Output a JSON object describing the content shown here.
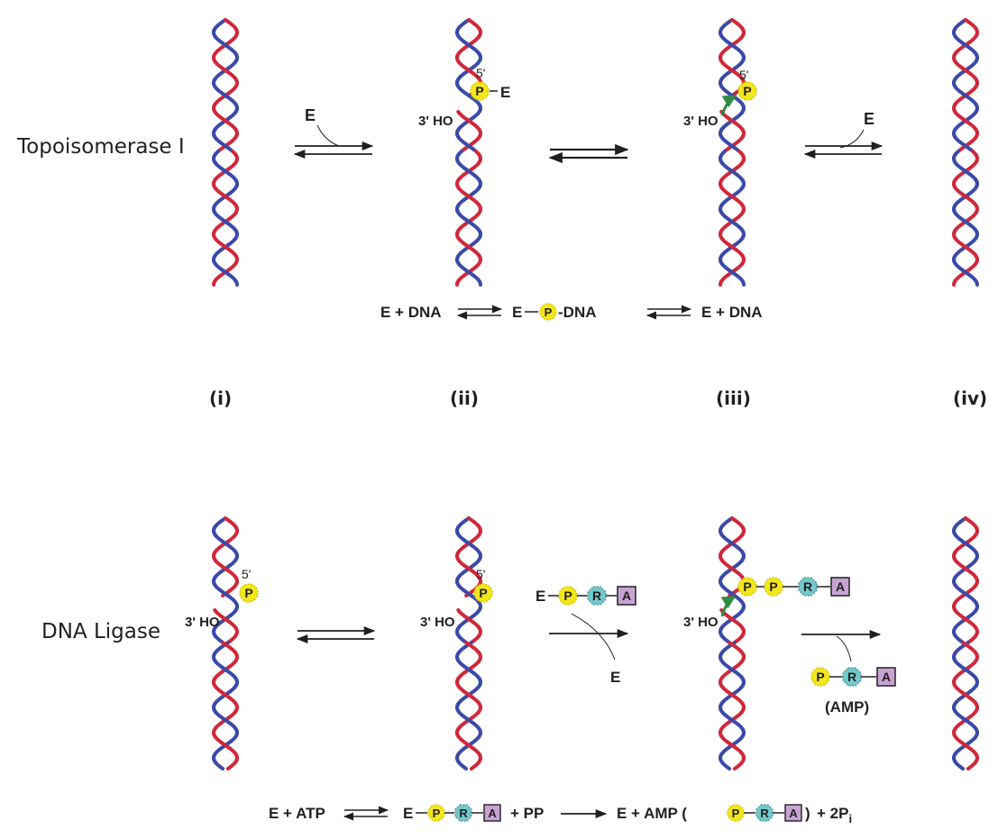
{
  "colors": {
    "strand_red": "#d0283a",
    "strand_blue": "#3b4aa8",
    "phosphate": "#f2e61c",
    "ribose": "#74c6c9",
    "adenine": "#c7a3d3",
    "arrow_green": "#2f8a45",
    "ink": "#231f20"
  },
  "icons": {
    "phosphate": "circle",
    "ribose": "octagon",
    "adenine": "square"
  },
  "rows": {
    "topo": {
      "label": "Topoisomerase I"
    },
    "ligase": {
      "label": "DNA Ligase"
    }
  },
  "steps": [
    "(i)",
    "(ii)",
    "(iii)",
    "(iv)"
  ],
  "symbols": {
    "enzyme": "E",
    "phosphate": "P",
    "ribose": "R",
    "adenine": "A",
    "five_prime": "5'",
    "three_prime_oh": "3' HO",
    "amp_label": "(AMP)"
  },
  "equations": {
    "topo": {
      "left": "E + DNA",
      "mid_e": "E",
      "mid_dna": "-DNA",
      "right": "E + DNA"
    },
    "ligase": {
      "left": "E + ATP",
      "mid_e": "E",
      "plus_pp": "+ PP",
      "products": "E + AMP (",
      "close": ")",
      "tail": "+ 2P",
      "tail_sub": "i"
    }
  }
}
